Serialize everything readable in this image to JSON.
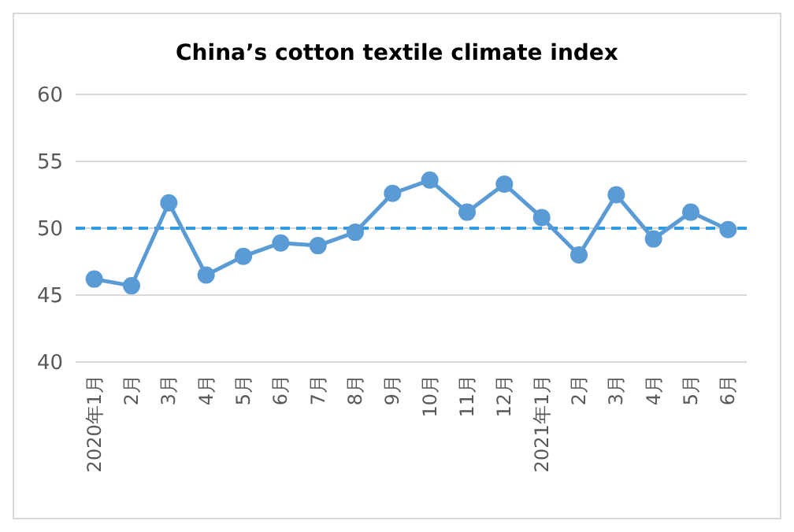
{
  "chart_data": {
    "type": "line",
    "title": "China’s cotton textile climate index",
    "categories": [
      "2020年1月",
      "2月",
      "3月",
      "4月",
      "5月",
      "6月",
      "7月",
      "8月",
      "9月",
      "10月",
      "11月",
      "12月",
      "2021年1月",
      "2月",
      "3月",
      "4月",
      "5月",
      "6月"
    ],
    "series": [
      {
        "color": "#5b9bd5",
        "values": [
          46.2,
          45.7,
          51.9,
          46.5,
          47.9,
          48.9,
          48.7,
          49.7,
          52.6,
          53.6,
          51.2,
          53.3,
          50.8,
          48.0,
          52.5,
          49.2,
          51.2,
          49.9
        ]
      }
    ],
    "ylim": [
      40,
      60
    ],
    "yticks": [
      40,
      45,
      50,
      55,
      60
    ],
    "grid": "y",
    "marker": "circle",
    "line_style": "solid",
    "ref_lines": [
      {
        "axis": "y",
        "value": 50,
        "color": "#2e9be6",
        "line_style": "dashed"
      }
    ]
  }
}
